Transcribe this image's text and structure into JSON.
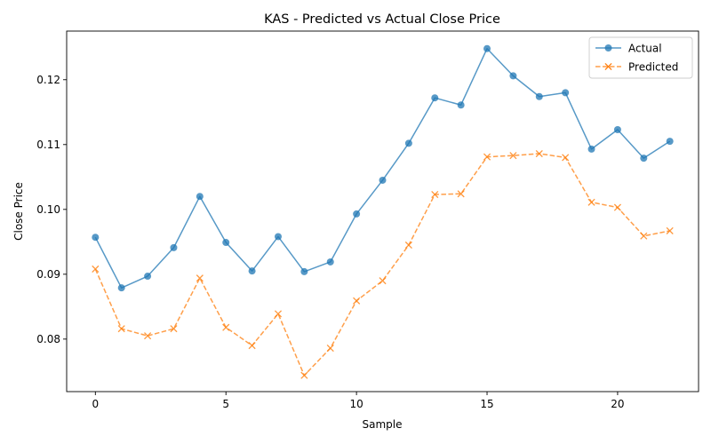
{
  "chart_data": {
    "type": "line",
    "title": "KAS - Predicted vs Actual Close Price",
    "xlabel": "Sample",
    "ylabel": "Close Price",
    "x": [
      0,
      1,
      2,
      3,
      4,
      5,
      6,
      7,
      8,
      9,
      10,
      11,
      12,
      13,
      14,
      15,
      16,
      17,
      18,
      19,
      20,
      21,
      22
    ],
    "xlim": [
      -1.1,
      23.1
    ],
    "ylim": [
      0.0719,
      0.1275
    ],
    "x_ticks": [
      0,
      5,
      10,
      15,
      20
    ],
    "y_ticks": [
      0.08,
      0.09,
      0.1,
      0.11,
      0.12
    ],
    "y_tick_labels": [
      "0.08",
      "0.09",
      "0.10",
      "0.11",
      "0.12"
    ],
    "grid": false,
    "legend_position": "top-right",
    "series": [
      {
        "name": "Actual",
        "color": "#1f77b4",
        "line_style": "solid",
        "marker": "circle",
        "values": [
          0.0957,
          0.0879,
          0.0897,
          0.0941,
          0.102,
          0.0949,
          0.0905,
          0.0958,
          0.0904,
          0.0919,
          0.0993,
          0.1045,
          0.1102,
          0.1172,
          0.1161,
          0.1248,
          0.1206,
          0.1174,
          0.118,
          0.1093,
          0.1123,
          0.1079,
          0.1105
        ]
      },
      {
        "name": "Predicted",
        "color": "#ff7f0e",
        "line_style": "dashed",
        "marker": "x",
        "values": [
          0.0908,
          0.0816,
          0.0805,
          0.0816,
          0.0894,
          0.0818,
          0.079,
          0.0839,
          0.0744,
          0.0786,
          0.0859,
          0.089,
          0.0945,
          0.1023,
          0.1024,
          0.1081,
          0.1083,
          0.1086,
          0.108,
          0.1011,
          0.1003,
          0.0959,
          0.0967
        ]
      }
    ]
  }
}
